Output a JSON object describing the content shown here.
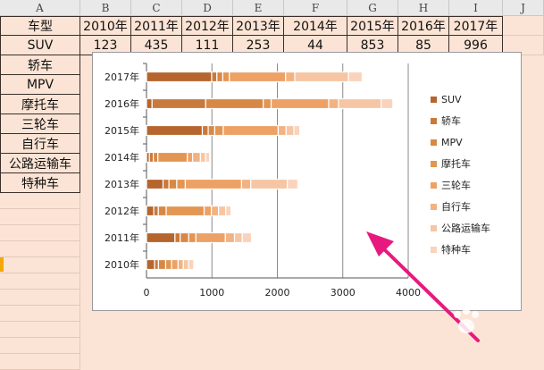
{
  "spreadsheet": {
    "column_headers": [
      "A",
      "B",
      "C",
      "D",
      "E",
      "F",
      "G",
      "H",
      "I",
      "J"
    ],
    "rows": [
      [
        "车型",
        "2010年",
        "2011年",
        "2012年",
        "2013年",
        "2014年",
        "2015年",
        "2016年",
        "2017年"
      ],
      [
        "SUV",
        "123",
        "435",
        "111",
        "253",
        "44",
        "853",
        "85",
        "996"
      ],
      [
        "轿车"
      ],
      [
        "MPV"
      ],
      [
        "摩托车"
      ],
      [
        "三轮车"
      ],
      [
        "自行车"
      ],
      [
        "公路运输车"
      ],
      [
        "特种车"
      ]
    ]
  },
  "colors": {
    "SUV": "#b5652d",
    "轿车": "#c87a3c",
    "MPV": "#d88845",
    "摩托车": "#e39552",
    "三轮车": "#eda165",
    "自行车": "#f2b281",
    "公路运输车": "#f6c6a4",
    "特种车": "#f9d3bc",
    "annotation_arrow": "#e8197e"
  },
  "chart_data": {
    "type": "bar",
    "stacked": true,
    "orientation": "horizontal",
    "categories": [
      "2010年",
      "2011年",
      "2012年",
      "2013年",
      "2014年",
      "2015年",
      "2016年",
      "2017年"
    ],
    "series": [
      {
        "name": "SUV",
        "values": [
          123,
          435,
          111,
          253,
          44,
          853,
          85,
          996
        ]
      },
      {
        "name": "轿车",
        "values": [
          60,
          80,
          70,
          90,
          60,
          90,
          820,
          80
        ]
      },
      {
        "name": "MPV",
        "values": [
          110,
          130,
          120,
          120,
          70,
          100,
          880,
          90
        ]
      },
      {
        "name": "摩托车",
        "values": [
          90,
          110,
          580,
          130,
          450,
          130,
          120,
          100
        ]
      },
      {
        "name": "三轮车",
        "values": [
          100,
          450,
          110,
          860,
          80,
          840,
          880,
          860
        ]
      },
      {
        "name": "自行车",
        "values": [
          80,
          140,
          110,
          140,
          120,
          120,
          150,
          140
        ]
      },
      {
        "name": "公路运输车",
        "values": [
          80,
          120,
          110,
          560,
          80,
          120,
          650,
          820
        ]
      },
      {
        "name": "特种车",
        "values": [
          80,
          140,
          80,
          160,
          60,
          90,
          180,
          210
        ]
      }
    ],
    "xlim": [
      0,
      4000
    ],
    "xticks": [
      "0",
      "1000",
      "2000",
      "3000",
      "4000"
    ],
    "grid": true,
    "legend_position": "right"
  }
}
